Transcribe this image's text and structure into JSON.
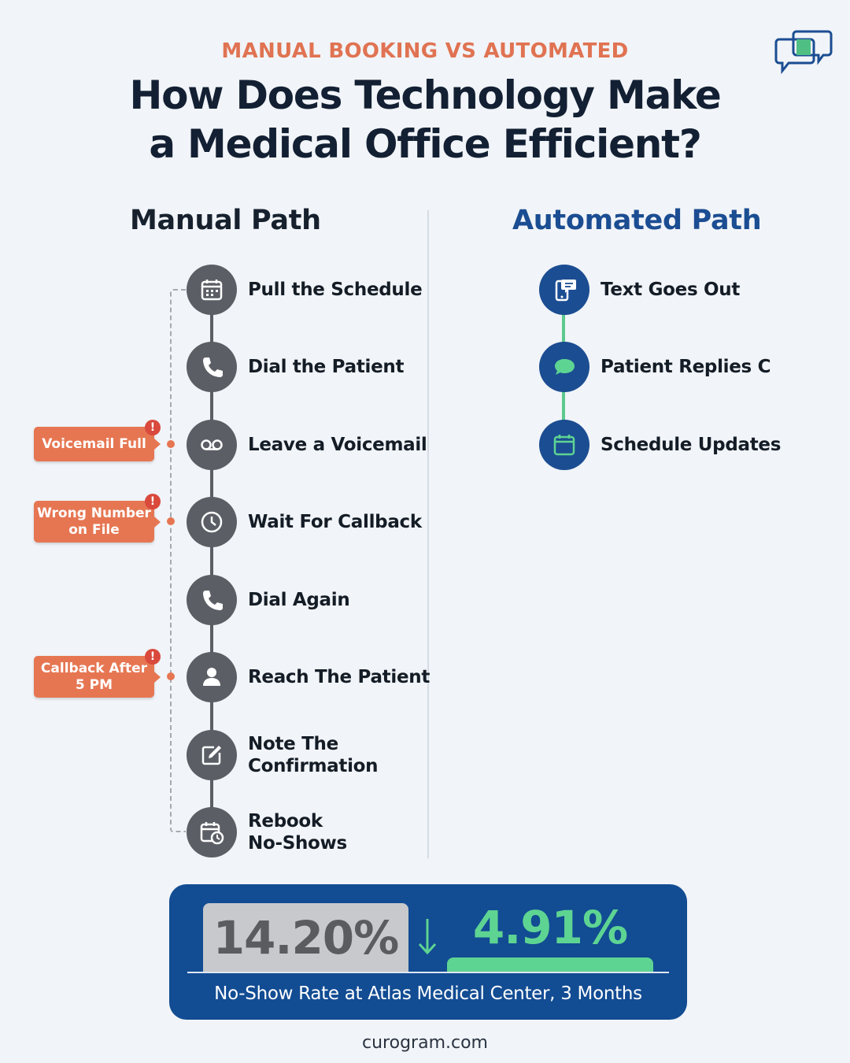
{
  "header": {
    "eyebrow": "MANUAL BOOKING VS AUTOMATED",
    "title": "How Does Technology Make\na Medical Office Efficient?"
  },
  "colors": {
    "accent_orange": "#e67652",
    "manual_gray": "#5b5f65",
    "auto_navy": "#1b4d92",
    "auto_green": "#5ed492",
    "alert_red": "#d9493c"
  },
  "manual": {
    "heading": "Manual Path",
    "steps": [
      {
        "label": "Pull the Schedule",
        "icon": "calendar-icon"
      },
      {
        "label": "Dial the Patient",
        "icon": "phone-icon"
      },
      {
        "label": "Leave a Voicemail",
        "icon": "voicemail-icon"
      },
      {
        "label": "Wait For Callback",
        "icon": "clock-icon"
      },
      {
        "label": "Dial Again",
        "icon": "phone-icon"
      },
      {
        "label": "Reach The Patient",
        "icon": "person-icon"
      },
      {
        "label": "Note The\nConfirmation",
        "icon": "edit-icon"
      },
      {
        "label": "Rebook\nNo-Shows",
        "icon": "calendar-clock-icon"
      }
    ],
    "callouts": [
      {
        "text": "Voicemail Full",
        "badge": "!",
        "step": "Leave a Voicemail"
      },
      {
        "text": "Wrong Number\non File",
        "badge": "!",
        "step": "Wait For Callback"
      },
      {
        "text": "Callback After\n5 PM",
        "badge": "!",
        "step": "Reach The Patient"
      }
    ]
  },
  "automated": {
    "heading": "Automated Path",
    "steps": [
      {
        "label": "Text Goes Out",
        "icon": "phone-message-icon"
      },
      {
        "label": "Patient Replies C",
        "icon": "chat-bubble-icon"
      },
      {
        "label": "Schedule Updates",
        "icon": "calendar-icon"
      }
    ]
  },
  "stat": {
    "before": "14.20%",
    "after": "4.91%",
    "caption": "No-Show Rate at Atlas Medical Center, 3 Months"
  },
  "footer": {
    "site": "curogram.com"
  }
}
